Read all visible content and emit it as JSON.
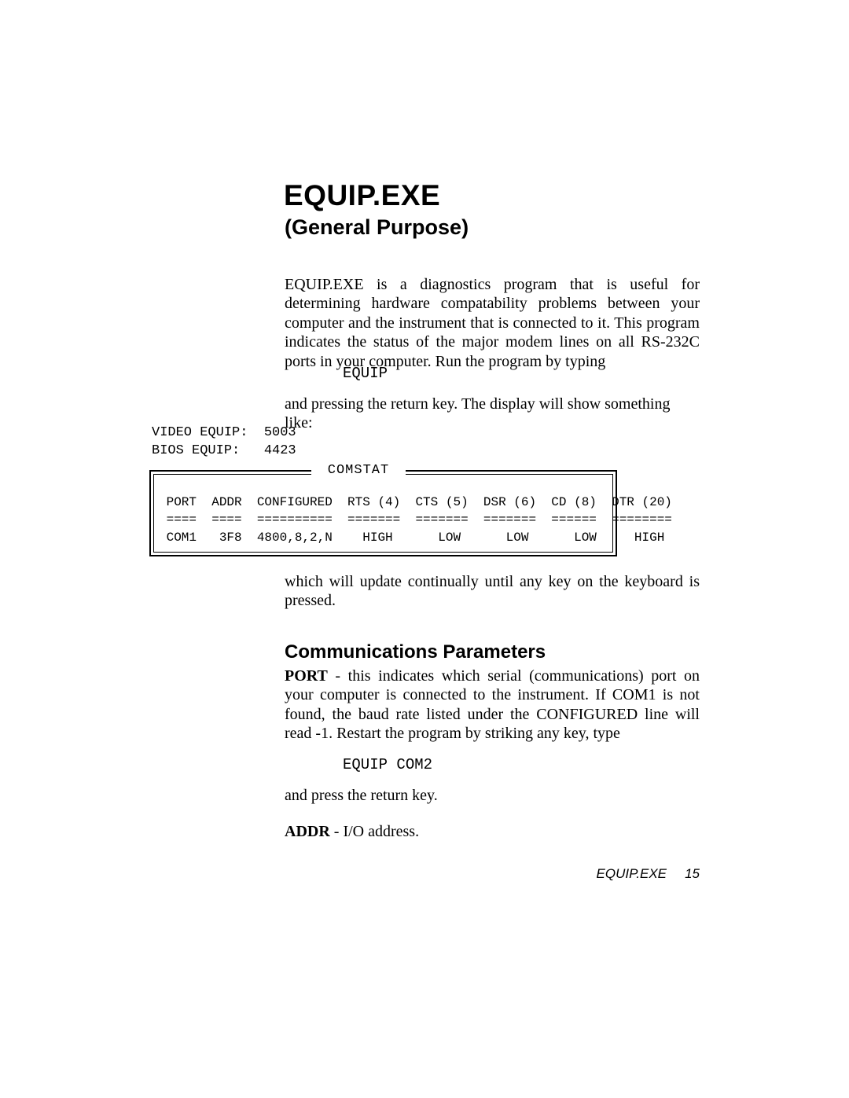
{
  "title": "EQUIP.EXE",
  "subtitle": "(General Purpose)",
  "para1": "EQUIP.EXE is a diagnostics program that is useful for determining hardware compatability problems between your computer and the instrument that is connected to it.  This program indicates the status of the major modem lines on all RS-232C ports in your computer.  Run the program by typing",
  "cmd1": "EQUIP",
  "para2": "and pressing the return key.  The display will show something like:",
  "pre_top": "VIDEO EQUIP:  5003\nBIOS EQUIP:   4423",
  "comstat_label": "COMSTAT",
  "comstat_table": " PORT  ADDR  CONFIGURED  RTS (4)  CTS (5)  DSR (6)  CD (8)  DTR (20)\n ====  ====  ==========  =======  =======  =======  ======  ========\n COM1   3F8  4800,8,2,N    HIGH      LOW      LOW      LOW     HIGH",
  "para3": "which will update continually until any key on the keyboard is pressed.",
  "section_head": "Communications Parameters",
  "para4_bold": "PORT",
  "para4_rest": " - this indicates which serial (communications) port on your computer is connected to the instrument.  If COM1 is not found, the baud rate listed under the CONFIGURED line will read -1.  Restart the program by striking any key, type",
  "cmd2": "EQUIP COM2",
  "para5": "and press the return key.",
  "para6_bold": "ADDR",
  "para6_rest": " - I/O address.",
  "footer_title": "EQUIP.EXE",
  "footer_page": "15"
}
